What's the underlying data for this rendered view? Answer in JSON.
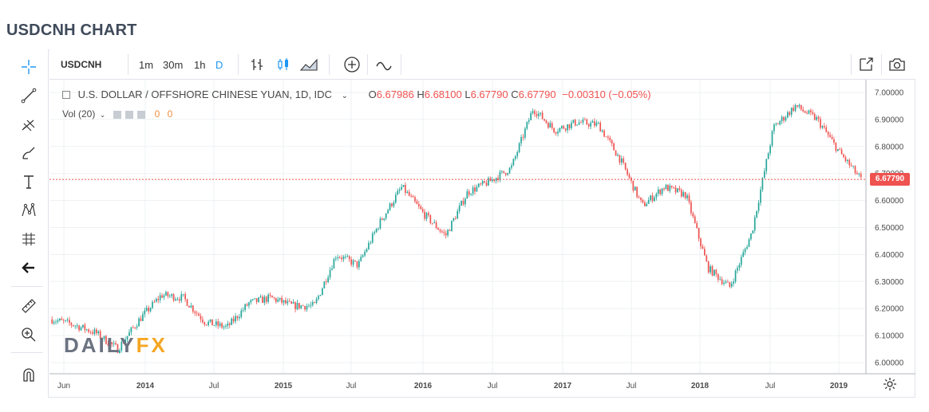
{
  "page": {
    "title": "USDCNH CHART"
  },
  "toolbar": {
    "symbol": "USDCNH",
    "intervals": [
      "1m",
      "30m",
      "1h"
    ],
    "active_interval": "D"
  },
  "legend": {
    "name": "U.S. DOLLAR / OFFSHORE CHINESE YUAN, 1D, IDC",
    "open_label": "O",
    "open": "6.67986",
    "high_label": "H",
    "high": "6.68100",
    "low_label": "L",
    "low": "6.67790",
    "close_label": "C",
    "close": "6.67790",
    "change": "−0.00310 (−0.05%)",
    "vol_label": "Vol (20)",
    "vol_value_1": "0",
    "vol_value_2": "0"
  },
  "price_tag": "6.67790",
  "watermark": {
    "part1": "DAILY",
    "part2": "FX"
  },
  "icons": [
    "crosshair-icon",
    "trend-line-icon",
    "pitchfork-icon",
    "brush-icon",
    "text-icon",
    "pattern-icon",
    "measure-icon",
    "back-arrow-icon",
    "ruler-icon",
    "zoom-icon",
    "magnet-icon",
    "bar-style-icon",
    "candle-style-icon",
    "indicators-icon",
    "add-icon",
    "compare-icon",
    "fullscreen-icon",
    "camera-icon",
    "settings-icon"
  ],
  "colors": {
    "up": "#26a69a",
    "down": "#ef5350",
    "accent": "#2196f3",
    "grid": "#eef0f3"
  },
  "chart_data": {
    "type": "line",
    "title": "U.S. DOLLAR / OFFSHORE CHINESE YUAN, 1D, IDC",
    "ylim": [
      5.98,
      7.02
    ],
    "y_ticks": [
      "7.00000",
      "6.90000",
      "6.80000",
      "6.70000",
      "6.60000",
      "6.50000",
      "6.40000",
      "6.30000",
      "6.20000",
      "6.10000",
      "6.00000"
    ],
    "x_ticks": [
      "Jun",
      "2014",
      "Jul",
      "2015",
      "Jul",
      "2016",
      "Jul",
      "2017",
      "Jul",
      "2018",
      "Jul",
      "2019"
    ],
    "x": [
      "2013-06",
      "2013-09",
      "2013-12",
      "2014-01",
      "2014-03",
      "2014-05",
      "2014-07",
      "2014-09",
      "2014-11",
      "2015-01",
      "2015-03",
      "2015-05",
      "2015-07",
      "2015-08",
      "2015-10",
      "2015-12",
      "2016-01",
      "2016-02",
      "2016-04",
      "2016-06",
      "2016-08",
      "2016-10",
      "2016-12",
      "2017-01",
      "2017-03",
      "2017-05",
      "2017-07",
      "2017-09",
      "2017-10",
      "2017-12",
      "2018-02",
      "2018-04",
      "2018-06",
      "2018-08",
      "2018-10",
      "2018-12",
      "2019-01",
      "2019-02"
    ],
    "series": [
      {
        "values": [
          6.16,
          6.14,
          6.11,
          6.05,
          6.16,
          6.25,
          6.24,
          6.15,
          6.13,
          6.22,
          6.24,
          6.21,
          6.21,
          6.4,
          6.36,
          6.52,
          6.65,
          6.55,
          6.47,
          6.63,
          6.67,
          6.72,
          6.94,
          6.86,
          6.89,
          6.88,
          6.75,
          6.58,
          6.65,
          6.62,
          6.35,
          6.28,
          6.48,
          6.87,
          6.95,
          6.9,
          6.78,
          6.678
        ]
      }
    ]
  }
}
